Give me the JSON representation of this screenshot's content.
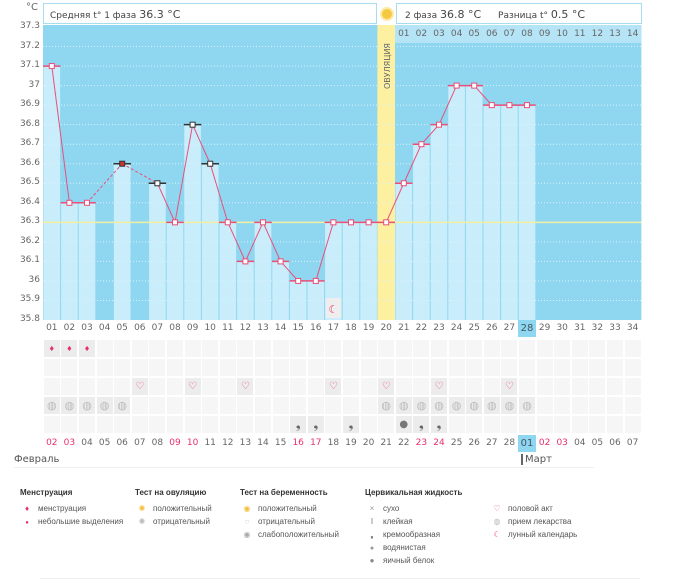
{
  "header": {
    "phase1_label": "Средняя t° 1 фаза",
    "phase1_value": "36.3 °C",
    "phase2_label": "2 фаза",
    "phase2_value": "36.8 °C",
    "diff_label": "Разница t°",
    "diff_value": "0.5 °C",
    "ovulation_label": "ОВУЛЯЦИЯ",
    "phase2_days": [
      "01",
      "02",
      "03",
      "04",
      "05",
      "06",
      "07",
      "08",
      "09",
      "10",
      "11",
      "12",
      "13",
      "14"
    ]
  },
  "chart_data": {
    "type": "line",
    "ylabel": "°C",
    "ylim": [
      35.8,
      37.3
    ],
    "yticks": [
      "37.3",
      "37.2",
      "37.1",
      "37",
      "36.9",
      "36.8",
      "36.7",
      "36.6",
      "36.5",
      "36.4",
      "36.3",
      "36.2",
      "36.1",
      "36",
      "35.9",
      "35.8"
    ],
    "grid": true,
    "cover_line": 36.3,
    "ovulation_day": 20,
    "current_day": 28,
    "days": [
      "01",
      "02",
      "03",
      "04",
      "05",
      "06",
      "07",
      "08",
      "09",
      "10",
      "11",
      "12",
      "13",
      "14",
      "15",
      "16",
      "17",
      "18",
      "19",
      "20",
      "21",
      "22",
      "23",
      "24",
      "25",
      "26",
      "27",
      "28",
      "29",
      "30",
      "31",
      "32",
      "33",
      "34"
    ],
    "temperatures": [
      37.1,
      36.4,
      36.4,
      null,
      36.6,
      null,
      36.5,
      36.3,
      36.8,
      36.6,
      36.3,
      36.1,
      36.3,
      36.1,
      36.0,
      36.0,
      36.3,
      36.3,
      36.3,
      36.3,
      36.5,
      36.7,
      36.8,
      37.0,
      37.0,
      36.9,
      36.9,
      36.9
    ],
    "excluded_days": [
      5,
      7,
      9,
      10
    ],
    "colors": {
      "line": "#e8507a",
      "background": "#8fd7f1",
      "bar": "#caedfb",
      "ovulation": "#fdf0a0",
      "cover": "#f1f0a0"
    }
  },
  "marks": {
    "moon_days": [
      17
    ],
    "menstruation_days": [
      1,
      2,
      3
    ],
    "intercourse_days": [
      6,
      9,
      12,
      17,
      20,
      23,
      27
    ],
    "medication_days": [
      1,
      2,
      3,
      4,
      5,
      20,
      21,
      22,
      23,
      24,
      25,
      26,
      27,
      28
    ],
    "cervical_creamy_days": [
      15,
      16,
      18,
      22,
      23
    ],
    "cervical_eggwhite_days": [
      21
    ]
  },
  "dates": {
    "values": [
      "02",
      "03",
      "04",
      "05",
      "06",
      "07",
      "08",
      "09",
      "10",
      "11",
      "12",
      "13",
      "14",
      "15",
      "16",
      "17",
      "18",
      "19",
      "20",
      "21",
      "22",
      "23",
      "24",
      "25",
      "26",
      "27",
      "28",
      "01",
      "02",
      "03",
      "04",
      "05",
      "06",
      "07"
    ],
    "weekend_indices": [
      0,
      1,
      7,
      8,
      14,
      15,
      21,
      22,
      28,
      29
    ],
    "month1": "Февраль",
    "month2": "Март"
  },
  "legend": {
    "menstruation": {
      "title": "Менструация",
      "items": [
        "менструация",
        "небольшие выделения"
      ]
    },
    "ovulation_test": {
      "title": "Тест на овуляцию",
      "items": [
        "положительный",
        "отрицательный"
      ]
    },
    "pregnancy_test": {
      "title": "Тест на беременность",
      "items": [
        "положительный",
        "отрицательный",
        "слабоположительный"
      ]
    },
    "cervical": {
      "title": "Цервикальная жидкость",
      "items": [
        "сухо",
        "клейкая",
        "кремообразная",
        "водянистая",
        "яичный белок"
      ]
    },
    "other": {
      "items": [
        "половой акт",
        "прием лекарства",
        "лунный календарь"
      ]
    }
  }
}
